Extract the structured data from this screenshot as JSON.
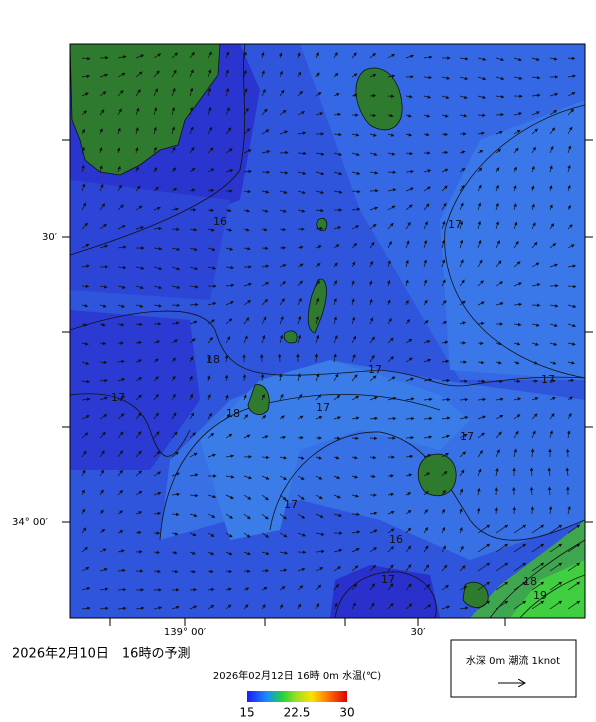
{
  "map": {
    "lat_labels": [
      "30′",
      "34° 00′"
    ],
    "lon_labels": [
      "139° 00′",
      "30′"
    ],
    "contour_labels": [
      16,
      17,
      18,
      17,
      17,
      18,
      17,
      17,
      17,
      17,
      16,
      17,
      18,
      19
    ]
  },
  "caption": "2026年2月10日　16時の予測",
  "colorbar": {
    "title": "2026年02月12日 16時 0m 水温(℃)",
    "ticks": [
      15,
      22.5,
      30
    ]
  },
  "legend": {
    "text": "水深 0m 潮流 1knot"
  }
}
